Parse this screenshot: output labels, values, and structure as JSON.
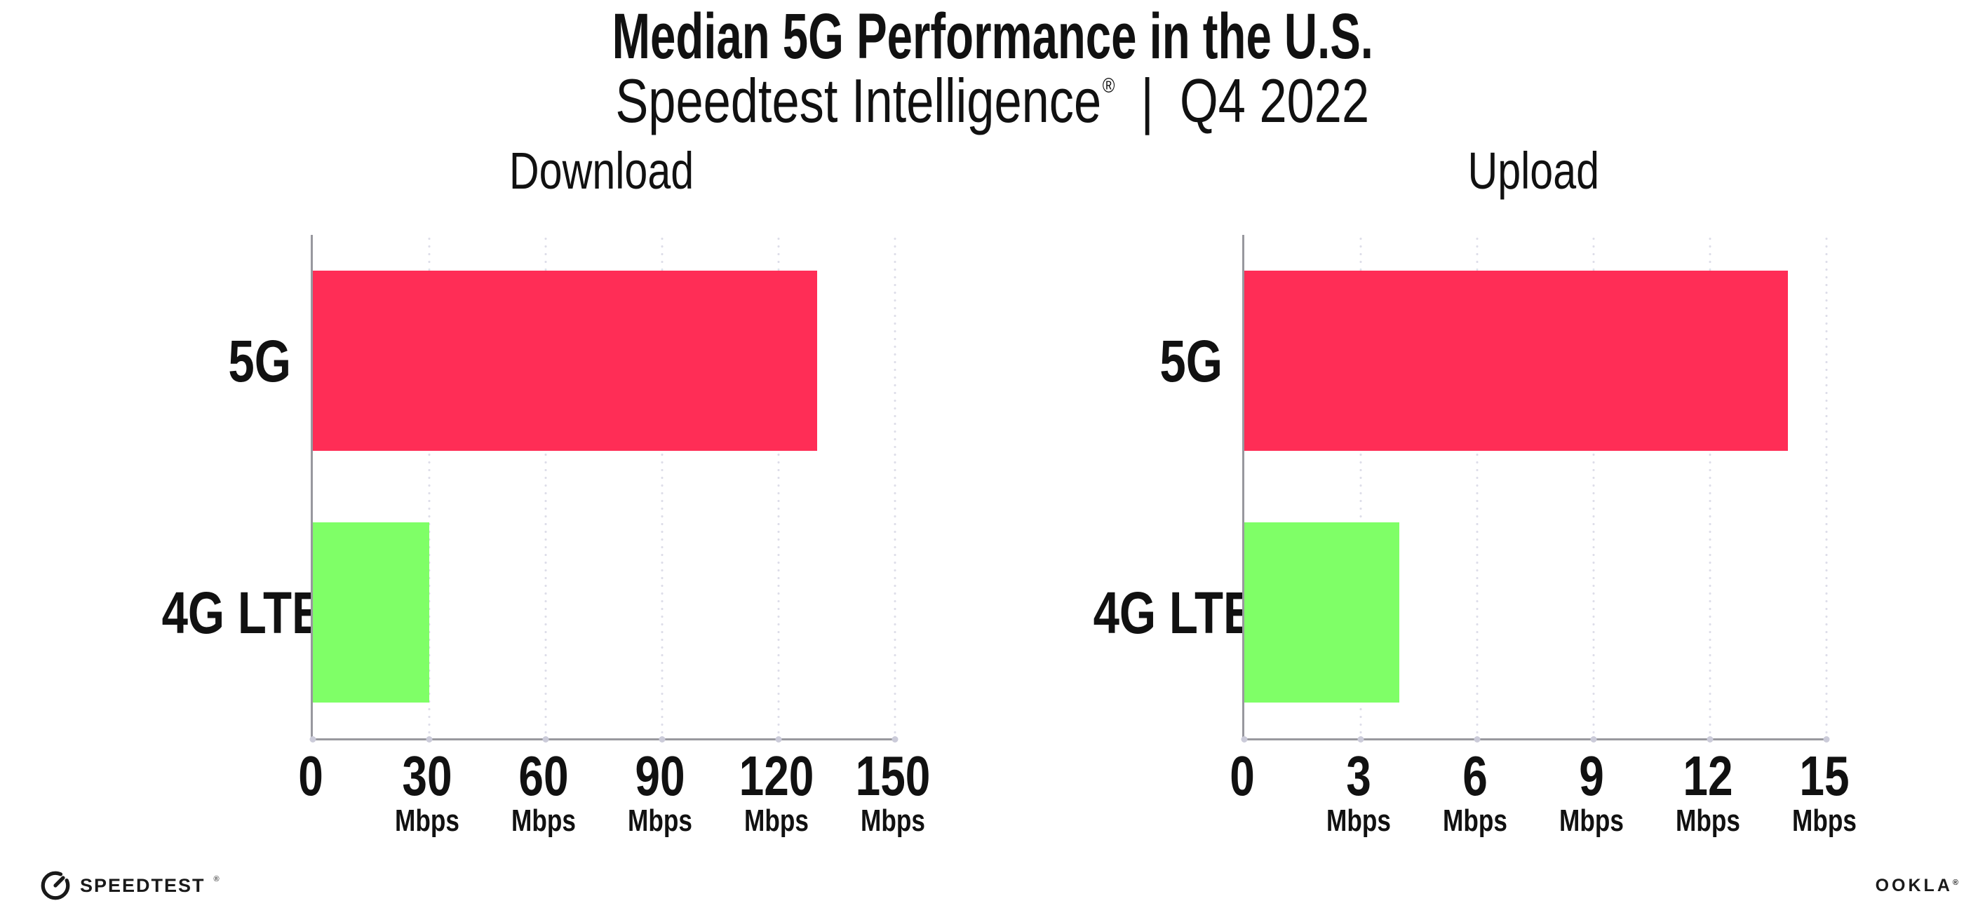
{
  "page": {
    "background": "#FFFFFF"
  },
  "header": {
    "title": "Median 5G Performance in the U.S.",
    "subtitle": {
      "brand": "Speedtest Intelligence",
      "registered_mark": "®",
      "separator": "|",
      "period": "Q4 2022"
    }
  },
  "chart_data": [
    {
      "type": "bar",
      "orientation": "horizontal",
      "title": "Download",
      "categories": [
        "5G",
        "4G LTE"
      ],
      "values": [
        130,
        30
      ],
      "value_unit": "Mbps",
      "xlim": [
        0,
        150
      ],
      "xticks": [
        0,
        30,
        60,
        90,
        120,
        150
      ],
      "xtick_unit_label": "Mbps",
      "bar_colors": [
        "#FF2D56",
        "#7FFF67"
      ],
      "grid": "vertical-dotted",
      "legend": "none"
    },
    {
      "type": "bar",
      "orientation": "horizontal",
      "title": "Upload",
      "categories": [
        "5G",
        "4G LTE"
      ],
      "values": [
        14,
        4
      ],
      "value_unit": "Mbps",
      "xlim": [
        0,
        15
      ],
      "xticks": [
        0,
        3,
        6,
        9,
        12,
        15
      ],
      "xtick_unit_label": "Mbps",
      "bar_colors": [
        "#FF2D56",
        "#7FFF67"
      ],
      "grid": "vertical-dotted",
      "legend": "none"
    }
  ],
  "footer": {
    "speedtest_logo": {
      "icon": "speedtest-gauge-icon",
      "text": "SPEEDTEST",
      "mark": "®"
    },
    "ookla_logo": {
      "text": "OOKLA",
      "mark": "®"
    }
  },
  "colors": {
    "bar_5g": "#FF2D56",
    "bar_4g_lte": "#7FFF67",
    "axis": "#98989E",
    "gridline": "#DEDEE9",
    "axis_tick_dot": "#CBCBD9",
    "text": "#111111"
  }
}
